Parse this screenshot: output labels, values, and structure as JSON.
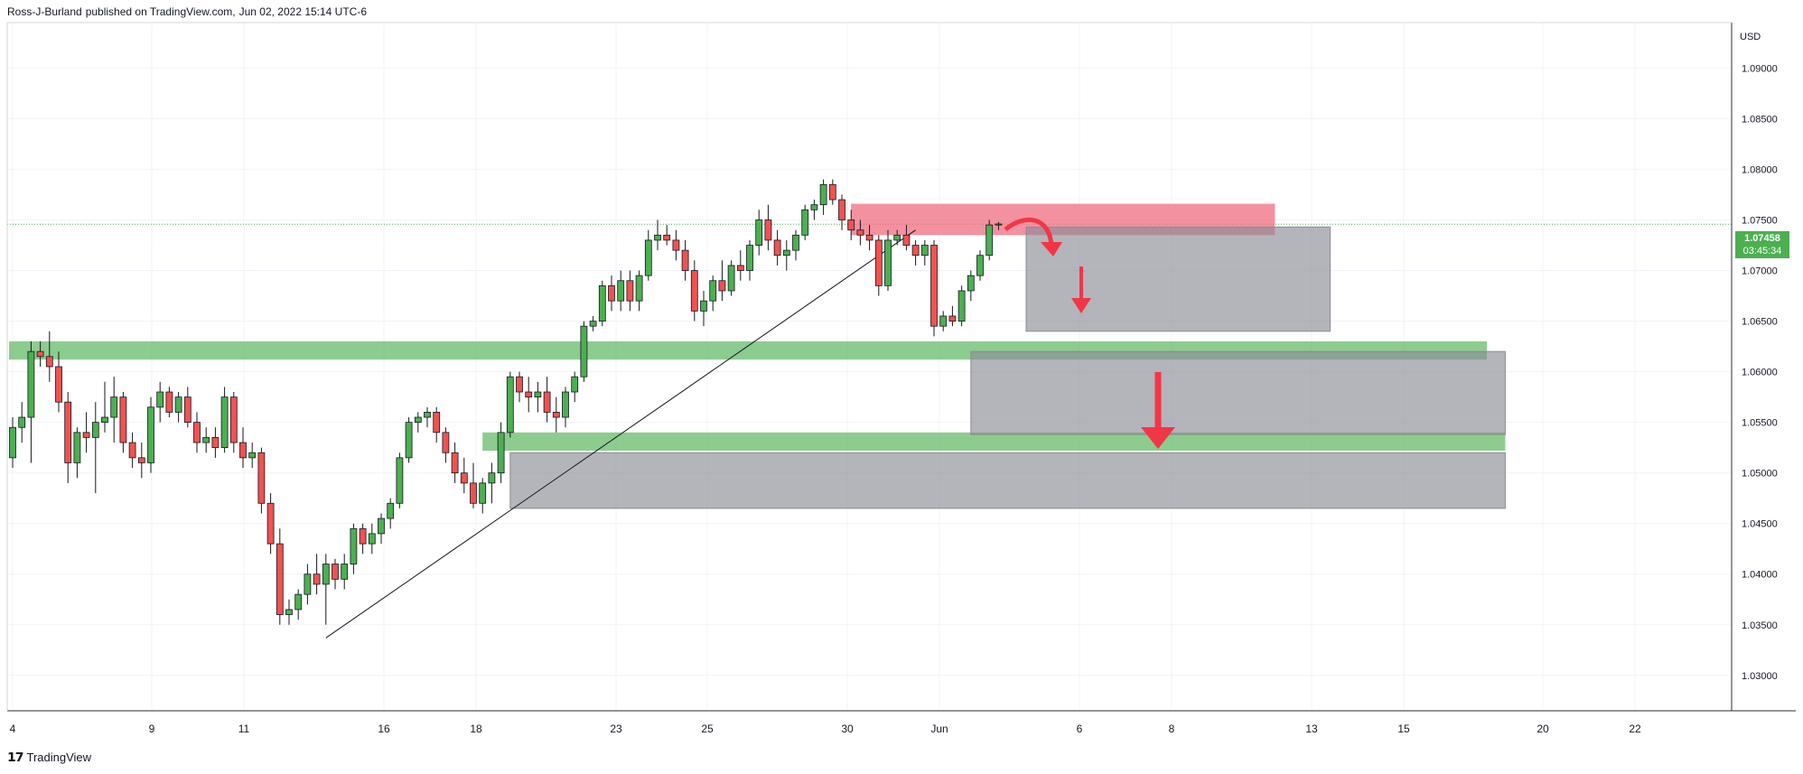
{
  "header": {
    "author": "Ross-J-Burland",
    "published_text": "published on TradingView.com,",
    "date": "Jun 02, 2022 15:14 UTC-6"
  },
  "branding": {
    "logo_text": "TradingView"
  },
  "colors": {
    "up": "#4caf50",
    "down": "#ef5350",
    "grid": "#f0f3fa",
    "zone_green": "#66bb6a",
    "zone_red": "#f06292",
    "zone_gray": "#9e9ea6",
    "arrow": "#f23645"
  },
  "chart_data": {
    "type": "candlestick",
    "currency": "USD",
    "ylim": [
      1.0265,
      1.0945
    ],
    "y_ticks": [
      "1.09000",
      "1.08500",
      "1.08000",
      "1.07500",
      "1.07000",
      "1.06500",
      "1.06000",
      "1.05500",
      "1.05000",
      "1.04500",
      "1.04000",
      "1.03500",
      "1.03000"
    ],
    "x_ticks": [
      "4",
      "9",
      "11",
      "16",
      "18",
      "23",
      "25",
      "30",
      "Jun",
      "6",
      "8",
      "13",
      "15",
      "20",
      "22"
    ],
    "last_price": "1.07458",
    "countdown": "03:45:34",
    "candles": [
      [
        1.0515,
        1.0555,
        1.0505,
        1.0545
      ],
      [
        1.0545,
        1.057,
        1.053,
        1.0555
      ],
      [
        1.0555,
        1.063,
        1.051,
        1.062
      ],
      [
        1.062,
        1.063,
        1.0605,
        1.0615
      ],
      [
        1.0615,
        1.064,
        1.059,
        1.0605
      ],
      [
        1.0605,
        1.062,
        1.056,
        1.057
      ],
      [
        1.057,
        1.058,
        1.049,
        1.051
      ],
      [
        1.051,
        1.0545,
        1.0495,
        1.054
      ],
      [
        1.054,
        1.056,
        1.052,
        1.0535
      ],
      [
        1.0535,
        1.057,
        1.048,
        1.055
      ],
      [
        1.055,
        1.059,
        1.054,
        1.0555
      ],
      [
        1.0555,
        1.0595,
        1.053,
        1.0575
      ],
      [
        1.0575,
        1.058,
        1.052,
        1.053
      ],
      [
        1.053,
        1.054,
        1.0505,
        1.0515
      ],
      [
        1.0515,
        1.053,
        1.0495,
        1.051
      ],
      [
        1.051,
        1.0575,
        1.05,
        1.0565
      ],
      [
        1.0565,
        1.059,
        1.055,
        1.058
      ],
      [
        1.058,
        1.0585,
        1.0555,
        1.056
      ],
      [
        1.056,
        1.058,
        1.055,
        1.0575
      ],
      [
        1.0575,
        1.0585,
        1.0545,
        1.055
      ],
      [
        1.055,
        1.056,
        1.052,
        1.053
      ],
      [
        1.053,
        1.0545,
        1.052,
        1.0535
      ],
      [
        1.0535,
        1.0545,
        1.0515,
        1.0525
      ],
      [
        1.0525,
        1.0585,
        1.052,
        1.0575
      ],
      [
        1.0575,
        1.058,
        1.052,
        1.053
      ],
      [
        1.053,
        1.0545,
        1.0505,
        1.0515
      ],
      [
        1.0515,
        1.053,
        1.0505,
        1.052
      ],
      [
        1.052,
        1.0525,
        1.046,
        1.047
      ],
      [
        1.047,
        1.048,
        1.042,
        1.043
      ],
      [
        1.043,
        1.0445,
        1.035,
        1.036
      ],
      [
        1.036,
        1.0375,
        1.035,
        1.0365
      ],
      [
        1.0365,
        1.0385,
        1.0355,
        1.038
      ],
      [
        1.038,
        1.041,
        1.037,
        1.04
      ],
      [
        1.04,
        1.042,
        1.038,
        1.039
      ],
      [
        1.039,
        1.042,
        1.035,
        1.041
      ],
      [
        1.041,
        1.0415,
        1.0385,
        1.0395
      ],
      [
        1.0395,
        1.042,
        1.0385,
        1.041
      ],
      [
        1.041,
        1.045,
        1.04,
        1.0445
      ],
      [
        1.0445,
        1.045,
        1.042,
        1.043
      ],
      [
        1.043,
        1.045,
        1.042,
        1.044
      ],
      [
        1.044,
        1.046,
        1.043,
        1.0455
      ],
      [
        1.0455,
        1.0475,
        1.0445,
        1.047
      ],
      [
        1.047,
        1.052,
        1.0465,
        1.0515
      ],
      [
        1.0515,
        1.0555,
        1.051,
        1.055
      ],
      [
        1.055,
        1.056,
        1.054,
        1.0555
      ],
      [
        1.0555,
        1.0565,
        1.0545,
        1.056
      ],
      [
        1.056,
        1.0565,
        1.053,
        1.054
      ],
      [
        1.054,
        1.0545,
        1.051,
        1.052
      ],
      [
        1.052,
        1.053,
        1.049,
        1.05
      ],
      [
        1.05,
        1.0515,
        1.048,
        1.049
      ],
      [
        1.049,
        1.051,
        1.0465,
        1.047
      ],
      [
        1.047,
        1.0495,
        1.046,
        1.049
      ],
      [
        1.049,
        1.051,
        1.047,
        1.05
      ],
      [
        1.05,
        1.055,
        1.049,
        1.054
      ],
      [
        1.054,
        1.06,
        1.0535,
        1.0595
      ],
      [
        1.0595,
        1.06,
        1.057,
        1.058
      ],
      [
        1.058,
        1.0595,
        1.056,
        1.0575
      ],
      [
        1.0575,
        1.059,
        1.056,
        1.058
      ],
      [
        1.058,
        1.0595,
        1.055,
        1.056
      ],
      [
        1.056,
        1.0575,
        1.054,
        1.0555
      ],
      [
        1.0555,
        1.0585,
        1.0545,
        1.058
      ],
      [
        1.058,
        1.06,
        1.057,
        1.0595
      ],
      [
        1.0595,
        1.065,
        1.059,
        1.0645
      ],
      [
        1.0645,
        1.0655,
        1.064,
        1.065
      ],
      [
        1.065,
        1.069,
        1.0645,
        1.0685
      ],
      [
        1.0685,
        1.0695,
        1.066,
        1.067
      ],
      [
        1.067,
        1.07,
        1.066,
        1.069
      ],
      [
        1.069,
        1.07,
        1.066,
        1.067
      ],
      [
        1.067,
        1.07,
        1.066,
        1.0695
      ],
      [
        1.0695,
        1.074,
        1.069,
        1.073
      ],
      [
        1.073,
        1.075,
        1.072,
        1.0735
      ],
      [
        1.0735,
        1.0745,
        1.0725,
        1.073
      ],
      [
        1.073,
        1.074,
        1.071,
        1.072
      ],
      [
        1.072,
        1.073,
        1.069,
        1.07
      ],
      [
        1.07,
        1.071,
        1.065,
        1.066
      ],
      [
        1.066,
        1.068,
        1.0645,
        1.067
      ],
      [
        1.067,
        1.0695,
        1.066,
        1.069
      ],
      [
        1.069,
        1.071,
        1.067,
        1.068
      ],
      [
        1.068,
        1.071,
        1.0675,
        1.0705
      ],
      [
        1.0705,
        1.072,
        1.069,
        1.07
      ],
      [
        1.07,
        1.073,
        1.069,
        1.0725
      ],
      [
        1.0725,
        1.076,
        1.0715,
        1.075
      ],
      [
        1.075,
        1.0765,
        1.072,
        1.073
      ],
      [
        1.073,
        1.074,
        1.0705,
        1.0715
      ],
      [
        1.0715,
        1.073,
        1.07,
        1.072
      ],
      [
        1.072,
        1.074,
        1.071,
        1.0735
      ],
      [
        1.0735,
        1.0765,
        1.073,
        1.076
      ],
      [
        1.076,
        1.077,
        1.075,
        1.0765
      ],
      [
        1.0765,
        1.079,
        1.0755,
        1.0785
      ],
      [
        1.0785,
        1.079,
        1.0765,
        1.077
      ],
      [
        1.077,
        1.0775,
        1.074,
        1.075
      ],
      [
        1.075,
        1.076,
        1.073,
        1.074
      ],
      [
        1.074,
        1.075,
        1.0725,
        1.0735
      ],
      [
        1.0735,
        1.0745,
        1.072,
        1.073
      ],
      [
        1.073,
        1.0735,
        1.0675,
        1.0685
      ],
      [
        1.0685,
        1.074,
        1.068,
        1.073
      ],
      [
        1.073,
        1.074,
        1.0725,
        1.0735
      ],
      [
        1.0735,
        1.0745,
        1.072,
        1.0725
      ],
      [
        1.0725,
        1.073,
        1.0705,
        1.0715
      ],
      [
        1.0715,
        1.073,
        1.0705,
        1.0725
      ],
      [
        1.0725,
        1.073,
        1.0635,
        1.0645
      ],
      [
        1.0645,
        1.066,
        1.064,
        1.0655
      ],
      [
        1.0655,
        1.0665,
        1.0645,
        1.065
      ],
      [
        1.065,
        1.0685,
        1.0645,
        1.068
      ],
      [
        1.068,
        1.07,
        1.067,
        1.0695
      ],
      [
        1.0695,
        1.072,
        1.069,
        1.0715
      ],
      [
        1.0715,
        1.075,
        1.071,
        1.0745
      ],
      [
        1.0745,
        1.0748,
        1.074,
        1.0746
      ]
    ],
    "zones": [
      {
        "kind": "support",
        "color": "green",
        "from_index": 0,
        "to_index": 160,
        "y1": 1.063,
        "y2": 1.0612
      },
      {
        "kind": "support",
        "color": "green",
        "from_index": 51,
        "to_index": 162,
        "y1": 1.054,
        "y2": 1.0522
      },
      {
        "kind": "resistance",
        "color": "red",
        "from_index": 91,
        "to_index": 137,
        "y1": 1.0766,
        "y2": 1.0735
      },
      {
        "kind": "target",
        "color": "gray",
        "from_index": 110,
        "to_index": 143,
        "y1": 1.0743,
        "y2": 1.064
      },
      {
        "kind": "target",
        "color": "gray",
        "from_index": 104,
        "to_index": 162,
        "y1": 1.062,
        "y2": 1.0538
      },
      {
        "kind": "target",
        "color": "gray",
        "from_index": 54,
        "to_index": 162,
        "y1": 1.052,
        "y2": 1.0465
      }
    ],
    "trendline": {
      "from": [
        34,
        1.0337
      ],
      "to": [
        98,
        1.074
      ]
    }
  }
}
